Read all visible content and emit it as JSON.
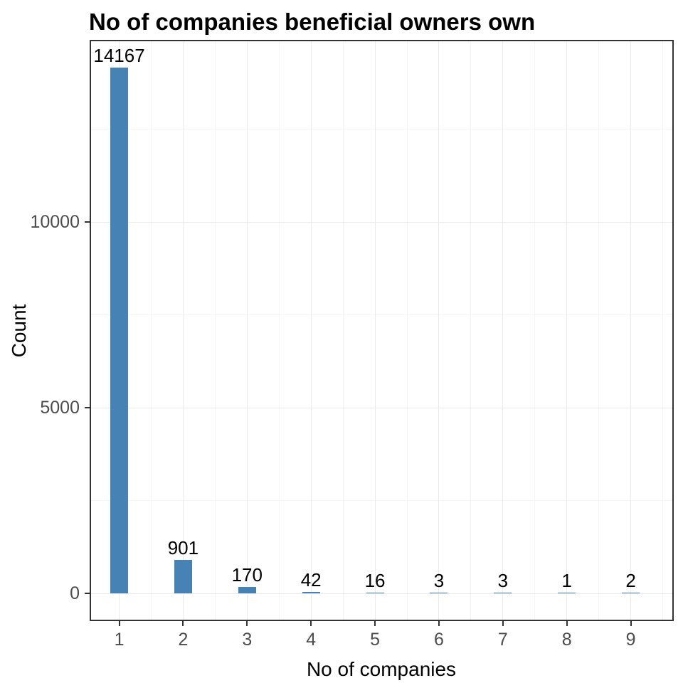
{
  "title": "No of companies beneficial owners own",
  "chart_data": {
    "type": "bar",
    "title": "No of companies beneficial owners own",
    "xlabel": "No of companies",
    "ylabel": "Count",
    "categories": [
      1,
      2,
      3,
      4,
      5,
      6,
      7,
      8,
      9
    ],
    "values": [
      14167,
      901,
      170,
      42,
      16,
      3,
      3,
      1,
      2
    ],
    "bar_labels": [
      "14167",
      "901",
      "170",
      "42",
      "16",
      "3",
      "3",
      "1",
      "2"
    ],
    "x_tick_labels": [
      "1",
      "2",
      "3",
      "4",
      "5",
      "6",
      "7",
      "8",
      "9"
    ],
    "y_tick_values": [
      0,
      5000,
      10000
    ],
    "y_tick_labels": [
      "0",
      "5000",
      "10000"
    ],
    "y_minor_tick_values": [
      2500,
      7500,
      12500
    ],
    "x_minor_positions": [
      1.5,
      2.5,
      3.5,
      4.5,
      5.5,
      6.5,
      7.5,
      8.5,
      9.5
    ],
    "xlim": [
      0.56,
      9.65
    ],
    "ylim": [
      -708,
      14875
    ],
    "grid": "major-and-minor",
    "legend": "none",
    "colors": {
      "bar": "#4682B4",
      "panel_border": "#333333",
      "grid_major": "#EBEBEB",
      "grid_minor": "#F5F5F5",
      "tick_label": "#4D4D4D",
      "text": "#000000",
      "background": "#FFFFFF"
    }
  }
}
